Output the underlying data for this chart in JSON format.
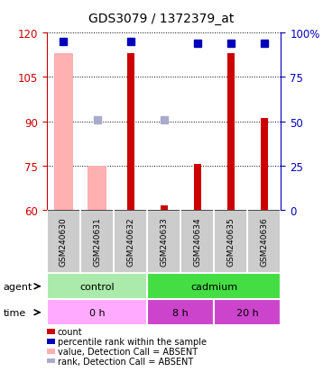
{
  "title": "GDS3079 / 1372379_at",
  "samples": [
    "GSM240630",
    "GSM240631",
    "GSM240632",
    "GSM240633",
    "GSM240634",
    "GSM240635",
    "GSM240636"
  ],
  "ylim_left": [
    60,
    120
  ],
  "ylim_right": [
    0,
    100
  ],
  "yticks_left": [
    60,
    75,
    90,
    105,
    120
  ],
  "yticks_right": [
    0,
    25,
    50,
    75,
    100
  ],
  "bar_base": 60,
  "count_tops": [
    60,
    60,
    113,
    61.5,
    75.5,
    113,
    91
  ],
  "absent_value_tops": [
    113,
    75,
    60,
    60,
    60,
    60,
    60
  ],
  "count_color": "#CC0000",
  "absent_value_color": "#FFB0B0",
  "rank_color": "#0000BB",
  "absent_rank_color": "#AAAACC",
  "rank_values": [
    95,
    null,
    95,
    null,
    94,
    94,
    94
  ],
  "absent_rank_values": [
    null,
    51,
    null,
    51,
    null,
    null,
    null
  ],
  "agent_groups": [
    {
      "label": "control",
      "start": 0,
      "end": 3,
      "color": "#AAEAAA"
    },
    {
      "label": "cadmium",
      "start": 3,
      "end": 7,
      "color": "#44DD44"
    }
  ],
  "time_colors": [
    "#FFAAFF",
    "#CC44CC"
  ],
  "time_groups": [
    {
      "label": "0 h",
      "start": 0,
      "end": 3,
      "color_idx": 0
    },
    {
      "label": "8 h",
      "start": 3,
      "end": 5,
      "color_idx": 1
    },
    {
      "label": "20 h",
      "start": 5,
      "end": 7,
      "color_idx": 1
    }
  ],
  "legend_items": [
    {
      "color": "#CC0000",
      "label": "count"
    },
    {
      "color": "#0000BB",
      "label": "percentile rank within the sample"
    },
    {
      "color": "#FFB0B0",
      "label": "value, Detection Call = ABSENT"
    },
    {
      "color": "#AAAACC",
      "label": "rank, Detection Call = ABSENT"
    }
  ],
  "bar_width": 0.55,
  "narrow_bar_width": 0.22,
  "marker_size": 6,
  "axis_color_left": "#CC0000",
  "axis_color_right": "#0000BB",
  "sample_box_color": "#CCCCCC",
  "grid_linestyle": "dotted",
  "grid_color": "#000000"
}
